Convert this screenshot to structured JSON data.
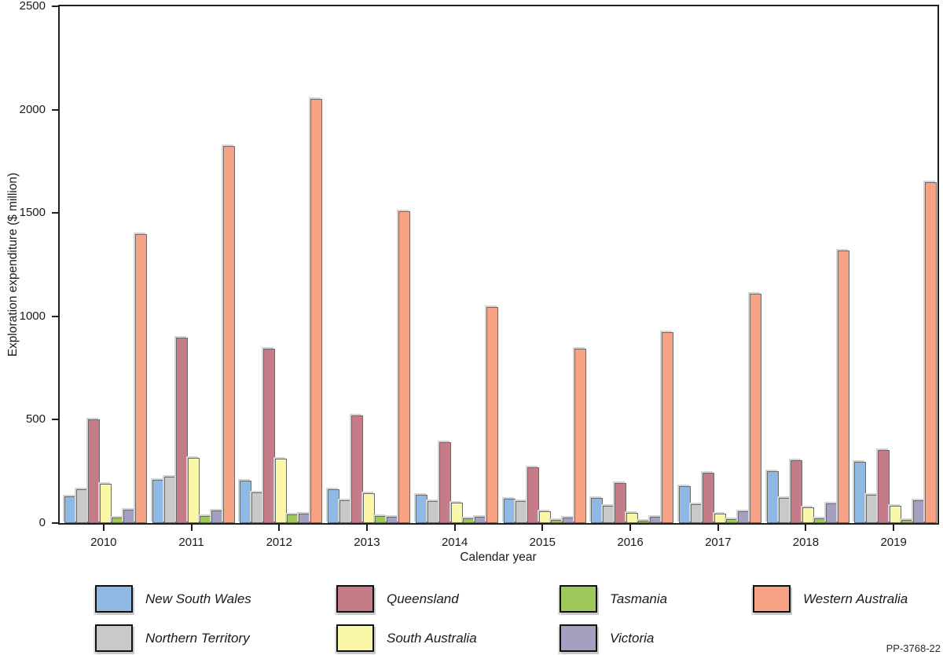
{
  "figure_code": "PP-3768-22",
  "chart_data": {
    "type": "bar",
    "title": "",
    "xlabel": "Calendar year",
    "ylabel": "Exploration expenditure ($ million)",
    "ylim": [
      0,
      2500
    ],
    "yticks": [
      0,
      500,
      1000,
      1500,
      2000,
      2500
    ],
    "grid": false,
    "legend_position": "bottom",
    "categories": [
      "2010",
      "2011",
      "2012",
      "2013",
      "2014",
      "2015",
      "2016",
      "2017",
      "2018",
      "2019"
    ],
    "series": [
      {
        "name": "New South Wales",
        "color": "#8fb9e3",
        "values": [
          130,
          210,
          205,
          165,
          135,
          118,
          120,
          180,
          250,
          295
        ]
      },
      {
        "name": "Northern Territory",
        "color": "#c9c9c9",
        "values": [
          165,
          225,
          150,
          110,
          105,
          105,
          85,
          90,
          120,
          135
        ]
      },
      {
        "name": "Queensland",
        "color": "#c67c88",
        "values": [
          500,
          895,
          845,
          520,
          390,
          270,
          195,
          245,
          305,
          355
        ]
      },
      {
        "name": "South Australia",
        "color": "#fbf7a8",
        "values": [
          190,
          315,
          310,
          145,
          100,
          57,
          48,
          45,
          76,
          85
        ]
      },
      {
        "name": "Tasmania",
        "color": "#9ec95a",
        "values": [
          25,
          35,
          40,
          35,
          23,
          14,
          13,
          19,
          22,
          14
        ]
      },
      {
        "name": "Victoria",
        "color": "#a5a0c0",
        "values": [
          65,
          60,
          45,
          32,
          29,
          27,
          30,
          57,
          95,
          110
        ]
      },
      {
        "name": "Western Australia",
        "color": "#f5a285",
        "values": [
          1400,
          1825,
          2050,
          1510,
          1045,
          845,
          925,
          1110,
          1320,
          1650
        ]
      }
    ],
    "legend_rows": [
      [
        "New South Wales",
        "Queensland",
        "Tasmania",
        "Western Australia"
      ],
      [
        "Northern Territory",
        "South Australia",
        "Victoria"
      ]
    ]
  }
}
